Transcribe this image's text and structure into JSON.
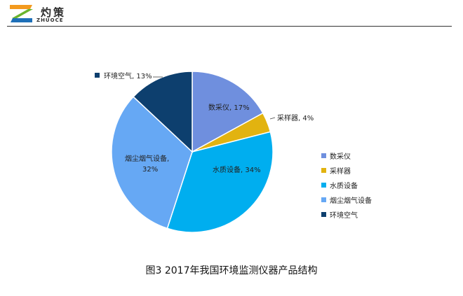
{
  "header": {
    "logo_name": "灼策",
    "logo_sub": "ZHUOCE",
    "logo_colors": {
      "orange": "#f39a1e",
      "green": "#6ab42d",
      "blue": "#1d6fb8"
    }
  },
  "chart_data": {
    "type": "pie",
    "title": "",
    "slices": [
      {
        "name": "数采仪",
        "value": 17,
        "label": "数采仪, 17%",
        "color": "#6f8fde"
      },
      {
        "name": "采样器",
        "value": 4,
        "label": "采样器, 4%",
        "color": "#e2b310"
      },
      {
        "name": "水质设备",
        "value": 34,
        "label": "水质设备, 34%",
        "color": "#00aeef"
      },
      {
        "name": "烟尘烟气设备",
        "value": 32,
        "label_lines": [
          "烟尘烟气设备,",
          "32%"
        ],
        "color": "#66a8f4"
      },
      {
        "name": "环境空气",
        "value": 13,
        "label": "环境空气, 13%",
        "color": "#0d3f6e"
      }
    ],
    "legend_position": "right"
  },
  "caption": "图3 2017年我国环境监测仪器产品结构"
}
